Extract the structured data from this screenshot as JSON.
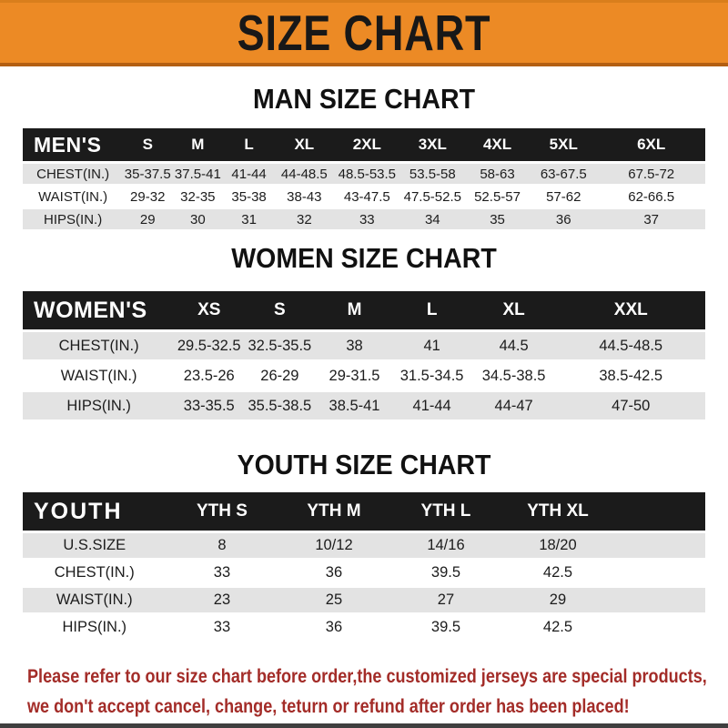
{
  "banner": {
    "title": "SIZE CHART"
  },
  "colors": {
    "banner_bg": "#EC8A25",
    "banner_edge": "#B35F12",
    "table_header_bg": "#1B1B1B",
    "row_alt_bg": "#E3E3E3",
    "disclaimer_red": "#A32C28"
  },
  "sections": [
    {
      "heading": "MAN SIZE CHART",
      "table": {
        "label": "MEN'S",
        "sizes": [
          "S",
          "M",
          "L",
          "XL",
          "2XL",
          "3XL",
          "4XL",
          "5XL",
          "6XL"
        ],
        "rows": [
          {
            "label": "CHEST(IN.)",
            "values": [
              "35-37.5",
              "37.5-41",
              "41-44",
              "44-48.5",
              "48.5-53.5",
              "53.5-58",
              "58-63",
              "63-67.5",
              "67.5-72"
            ]
          },
          {
            "label": "WAIST(IN.)",
            "values": [
              "29-32",
              "32-35",
              "35-38",
              "38-43",
              "43-47.5",
              "47.5-52.5",
              "52.5-57",
              "57-62",
              "62-66.5"
            ]
          },
          {
            "label": "HIPS(IN.)",
            "values": [
              "29",
              "30",
              "31",
              "32",
              "33",
              "34",
              "35",
              "36",
              "37"
            ]
          }
        ]
      }
    },
    {
      "heading": "WOMEN SIZE CHART",
      "table": {
        "label": "WOMEN'S",
        "sizes": [
          "XS",
          "S",
          "M",
          "L",
          "XL",
          "XXL"
        ],
        "rows": [
          {
            "label": "CHEST(IN.)",
            "values": [
              "29.5-32.5",
              "32.5-35.5",
              "38",
              "41",
              "44.5",
              "44.5-48.5"
            ]
          },
          {
            "label": "WAIST(IN.)",
            "values": [
              "23.5-26",
              "26-29",
              "29-31.5",
              "31.5-34.5",
              "34.5-38.5",
              "38.5-42.5"
            ]
          },
          {
            "label": "HIPS(IN.)",
            "values": [
              "33-35.5",
              "35.5-38.5",
              "38.5-41",
              "41-44",
              "44-47",
              "47-50"
            ]
          }
        ]
      }
    },
    {
      "heading": "YOUTH SIZE CHART",
      "table": {
        "label": "YOUTH",
        "sizes": [
          "YTH S",
          "YTH M",
          "YTH L",
          "YTH XL"
        ],
        "rows": [
          {
            "label": "U.S.SIZE",
            "values": [
              "8",
              "10/12",
              "14/16",
              "18/20"
            ]
          },
          {
            "label": "CHEST(IN.)",
            "values": [
              "33",
              "36",
              "39.5",
              "42.5"
            ]
          },
          {
            "label": "WAIST(IN.)",
            "values": [
              "23",
              "25",
              "27",
              "29"
            ]
          },
          {
            "label": "HIPS(IN.)",
            "values": [
              "33",
              "36",
              "39.5",
              "42.5"
            ]
          }
        ]
      }
    }
  ],
  "disclaimer": {
    "lines": [
      "Please refer to our size chart before order,the customized jerseys are special products,",
      "we don't accept cancel, change, teturn or refund after order has been placed!"
    ]
  }
}
